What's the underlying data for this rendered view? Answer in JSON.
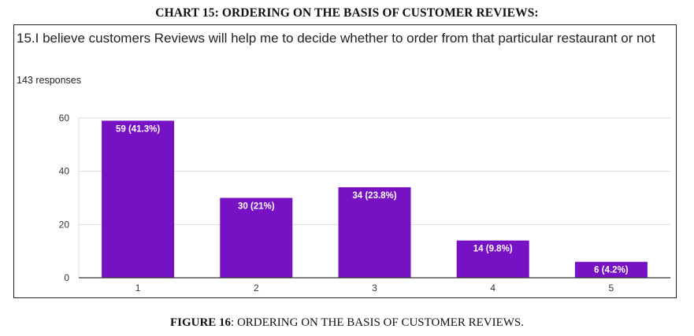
{
  "heading": "CHART 15: ORDERING ON THE BASIS OF CUSTOMER REVIEWS:",
  "question": "15.I believe customers Reviews will help me to decide whether to order from that particular restaurant or not",
  "responses": "143 responses",
  "caption": {
    "label": "FIGURE 16",
    "text": ": ORDERING ON THE BASIS OF CUSTOMER REVIEWS."
  },
  "colors": {
    "bar": "#7711c4",
    "grid": "#dddddd",
    "axis": "#333333",
    "label": "#ffffff"
  },
  "chart_data": {
    "type": "bar",
    "title": "",
    "xlabel": "",
    "ylabel": "",
    "categories": [
      "1",
      "2",
      "3",
      "4",
      "5"
    ],
    "values": [
      59,
      30,
      34,
      14,
      6
    ],
    "data_labels": [
      "59 (41.3%)",
      "30 (21%)",
      "34 (23.8%)",
      "14 (9.8%)",
      "6 (4.2%)"
    ],
    "ylim": [
      0,
      60
    ],
    "yticks": [
      0,
      20,
      40,
      60
    ],
    "grid": true,
    "legend": "none"
  }
}
